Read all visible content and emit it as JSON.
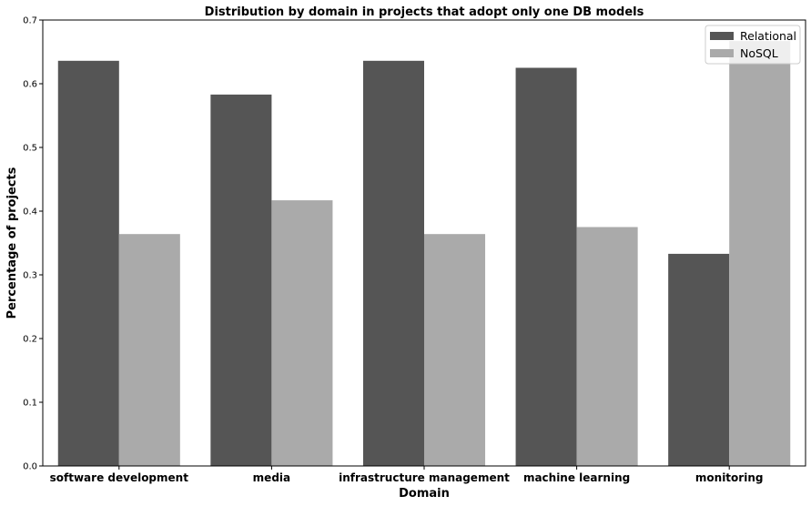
{
  "chart_data": {
    "type": "bar",
    "title": "Distribution by domain in projects that adopt only one DB models",
    "xlabel": "Domain",
    "ylabel": "Percentage of projects",
    "categories": [
      "software development",
      "media",
      "infrastructure management",
      "machine learning",
      "monitoring"
    ],
    "series": [
      {
        "name": "Relational",
        "color": "#555555",
        "values": [
          0.636,
          0.583,
          0.636,
          0.625,
          0.333
        ]
      },
      {
        "name": "NoSQL",
        "color": "#aaaaaa",
        "values": [
          0.364,
          0.417,
          0.364,
          0.375,
          0.667
        ]
      }
    ],
    "ylim": [
      0,
      0.7
    ],
    "yticks": [
      "0.0",
      "0.1",
      "0.2",
      "0.3",
      "0.4",
      "0.5",
      "0.6",
      "0.7"
    ],
    "grid": false,
    "legend": "top-right"
  }
}
